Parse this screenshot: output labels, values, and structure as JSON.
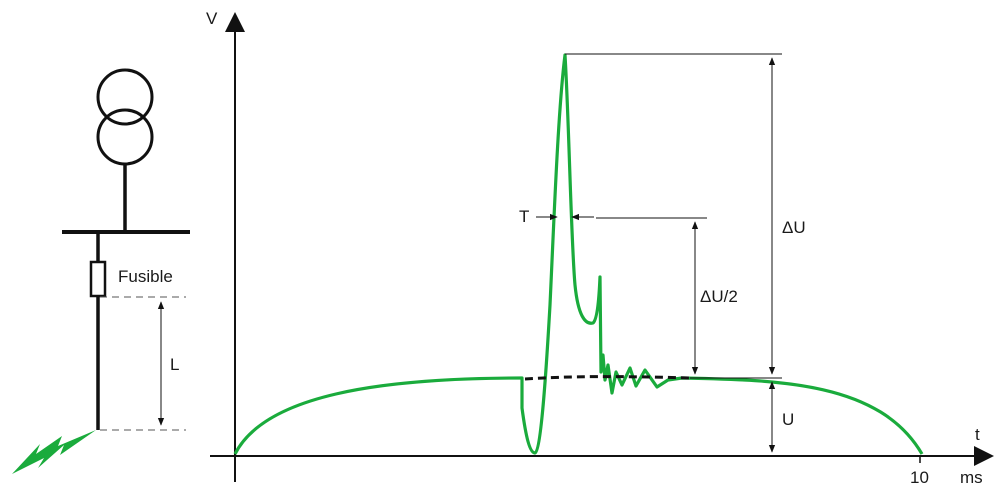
{
  "labels": {
    "v_axis": "V",
    "t_axis": "t",
    "ms": "ms",
    "ten": "10",
    "fusible": "Fusible",
    "length": "L",
    "t_label": "T",
    "delta_u": "ΔU",
    "delta_u_half": "ΔU/2",
    "u_label": "U"
  },
  "colors": {
    "curve": "#1aab3c",
    "line": "#111111"
  },
  "icons": {
    "transformer": "two-circle-transformer-symbol",
    "fault": "lightning-fault-icon",
    "fuse": "fuse-rectangle-symbol"
  }
}
